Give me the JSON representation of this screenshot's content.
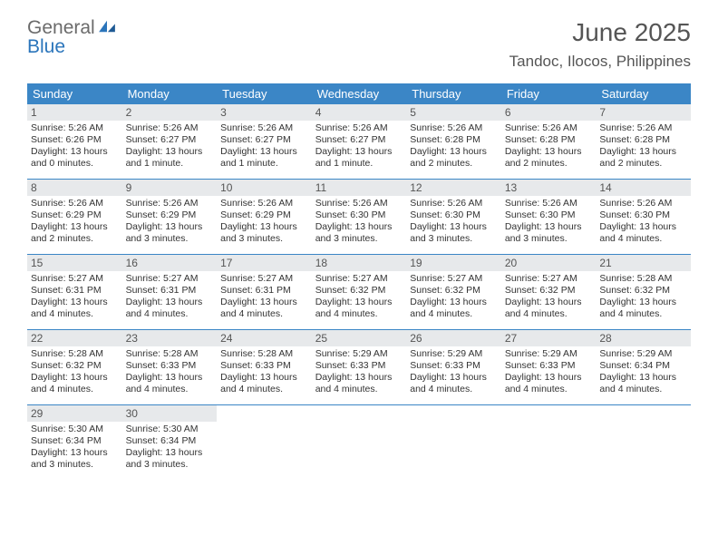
{
  "logo": {
    "text_gray": "General",
    "text_blue": "Blue"
  },
  "title": "June 2025",
  "location": "Tandoc, Ilocos, Philippines",
  "colors": {
    "header_bg": "#3b86c6",
    "header_fg": "#ffffff",
    "daynum_bg": "#e7e9eb",
    "text": "#333333",
    "rule": "#3b86c6",
    "logo_gray": "#6b6b6b",
    "logo_blue": "#2b75bb"
  },
  "weekdays": [
    "Sunday",
    "Monday",
    "Tuesday",
    "Wednesday",
    "Thursday",
    "Friday",
    "Saturday"
  ],
  "weeks": [
    [
      {
        "n": "1",
        "sr": "Sunrise: 5:26 AM",
        "ss": "Sunset: 6:26 PM",
        "dl": "Daylight: 13 hours and 0 minutes."
      },
      {
        "n": "2",
        "sr": "Sunrise: 5:26 AM",
        "ss": "Sunset: 6:27 PM",
        "dl": "Daylight: 13 hours and 1 minute."
      },
      {
        "n": "3",
        "sr": "Sunrise: 5:26 AM",
        "ss": "Sunset: 6:27 PM",
        "dl": "Daylight: 13 hours and 1 minute."
      },
      {
        "n": "4",
        "sr": "Sunrise: 5:26 AM",
        "ss": "Sunset: 6:27 PM",
        "dl": "Daylight: 13 hours and 1 minute."
      },
      {
        "n": "5",
        "sr": "Sunrise: 5:26 AM",
        "ss": "Sunset: 6:28 PM",
        "dl": "Daylight: 13 hours and 2 minutes."
      },
      {
        "n": "6",
        "sr": "Sunrise: 5:26 AM",
        "ss": "Sunset: 6:28 PM",
        "dl": "Daylight: 13 hours and 2 minutes."
      },
      {
        "n": "7",
        "sr": "Sunrise: 5:26 AM",
        "ss": "Sunset: 6:28 PM",
        "dl": "Daylight: 13 hours and 2 minutes."
      }
    ],
    [
      {
        "n": "8",
        "sr": "Sunrise: 5:26 AM",
        "ss": "Sunset: 6:29 PM",
        "dl": "Daylight: 13 hours and 2 minutes."
      },
      {
        "n": "9",
        "sr": "Sunrise: 5:26 AM",
        "ss": "Sunset: 6:29 PM",
        "dl": "Daylight: 13 hours and 3 minutes."
      },
      {
        "n": "10",
        "sr": "Sunrise: 5:26 AM",
        "ss": "Sunset: 6:29 PM",
        "dl": "Daylight: 13 hours and 3 minutes."
      },
      {
        "n": "11",
        "sr": "Sunrise: 5:26 AM",
        "ss": "Sunset: 6:30 PM",
        "dl": "Daylight: 13 hours and 3 minutes."
      },
      {
        "n": "12",
        "sr": "Sunrise: 5:26 AM",
        "ss": "Sunset: 6:30 PM",
        "dl": "Daylight: 13 hours and 3 minutes."
      },
      {
        "n": "13",
        "sr": "Sunrise: 5:26 AM",
        "ss": "Sunset: 6:30 PM",
        "dl": "Daylight: 13 hours and 3 minutes."
      },
      {
        "n": "14",
        "sr": "Sunrise: 5:26 AM",
        "ss": "Sunset: 6:30 PM",
        "dl": "Daylight: 13 hours and 4 minutes."
      }
    ],
    [
      {
        "n": "15",
        "sr": "Sunrise: 5:27 AM",
        "ss": "Sunset: 6:31 PM",
        "dl": "Daylight: 13 hours and 4 minutes."
      },
      {
        "n": "16",
        "sr": "Sunrise: 5:27 AM",
        "ss": "Sunset: 6:31 PM",
        "dl": "Daylight: 13 hours and 4 minutes."
      },
      {
        "n": "17",
        "sr": "Sunrise: 5:27 AM",
        "ss": "Sunset: 6:31 PM",
        "dl": "Daylight: 13 hours and 4 minutes."
      },
      {
        "n": "18",
        "sr": "Sunrise: 5:27 AM",
        "ss": "Sunset: 6:32 PM",
        "dl": "Daylight: 13 hours and 4 minutes."
      },
      {
        "n": "19",
        "sr": "Sunrise: 5:27 AM",
        "ss": "Sunset: 6:32 PM",
        "dl": "Daylight: 13 hours and 4 minutes."
      },
      {
        "n": "20",
        "sr": "Sunrise: 5:27 AM",
        "ss": "Sunset: 6:32 PM",
        "dl": "Daylight: 13 hours and 4 minutes."
      },
      {
        "n": "21",
        "sr": "Sunrise: 5:28 AM",
        "ss": "Sunset: 6:32 PM",
        "dl": "Daylight: 13 hours and 4 minutes."
      }
    ],
    [
      {
        "n": "22",
        "sr": "Sunrise: 5:28 AM",
        "ss": "Sunset: 6:32 PM",
        "dl": "Daylight: 13 hours and 4 minutes."
      },
      {
        "n": "23",
        "sr": "Sunrise: 5:28 AM",
        "ss": "Sunset: 6:33 PM",
        "dl": "Daylight: 13 hours and 4 minutes."
      },
      {
        "n": "24",
        "sr": "Sunrise: 5:28 AM",
        "ss": "Sunset: 6:33 PM",
        "dl": "Daylight: 13 hours and 4 minutes."
      },
      {
        "n": "25",
        "sr": "Sunrise: 5:29 AM",
        "ss": "Sunset: 6:33 PM",
        "dl": "Daylight: 13 hours and 4 minutes."
      },
      {
        "n": "26",
        "sr": "Sunrise: 5:29 AM",
        "ss": "Sunset: 6:33 PM",
        "dl": "Daylight: 13 hours and 4 minutes."
      },
      {
        "n": "27",
        "sr": "Sunrise: 5:29 AM",
        "ss": "Sunset: 6:33 PM",
        "dl": "Daylight: 13 hours and 4 minutes."
      },
      {
        "n": "28",
        "sr": "Sunrise: 5:29 AM",
        "ss": "Sunset: 6:34 PM",
        "dl": "Daylight: 13 hours and 4 minutes."
      }
    ],
    [
      {
        "n": "29",
        "sr": "Sunrise: 5:30 AM",
        "ss": "Sunset: 6:34 PM",
        "dl": "Daylight: 13 hours and 3 minutes."
      },
      {
        "n": "30",
        "sr": "Sunrise: 5:30 AM",
        "ss": "Sunset: 6:34 PM",
        "dl": "Daylight: 13 hours and 3 minutes."
      },
      null,
      null,
      null,
      null,
      null
    ]
  ]
}
